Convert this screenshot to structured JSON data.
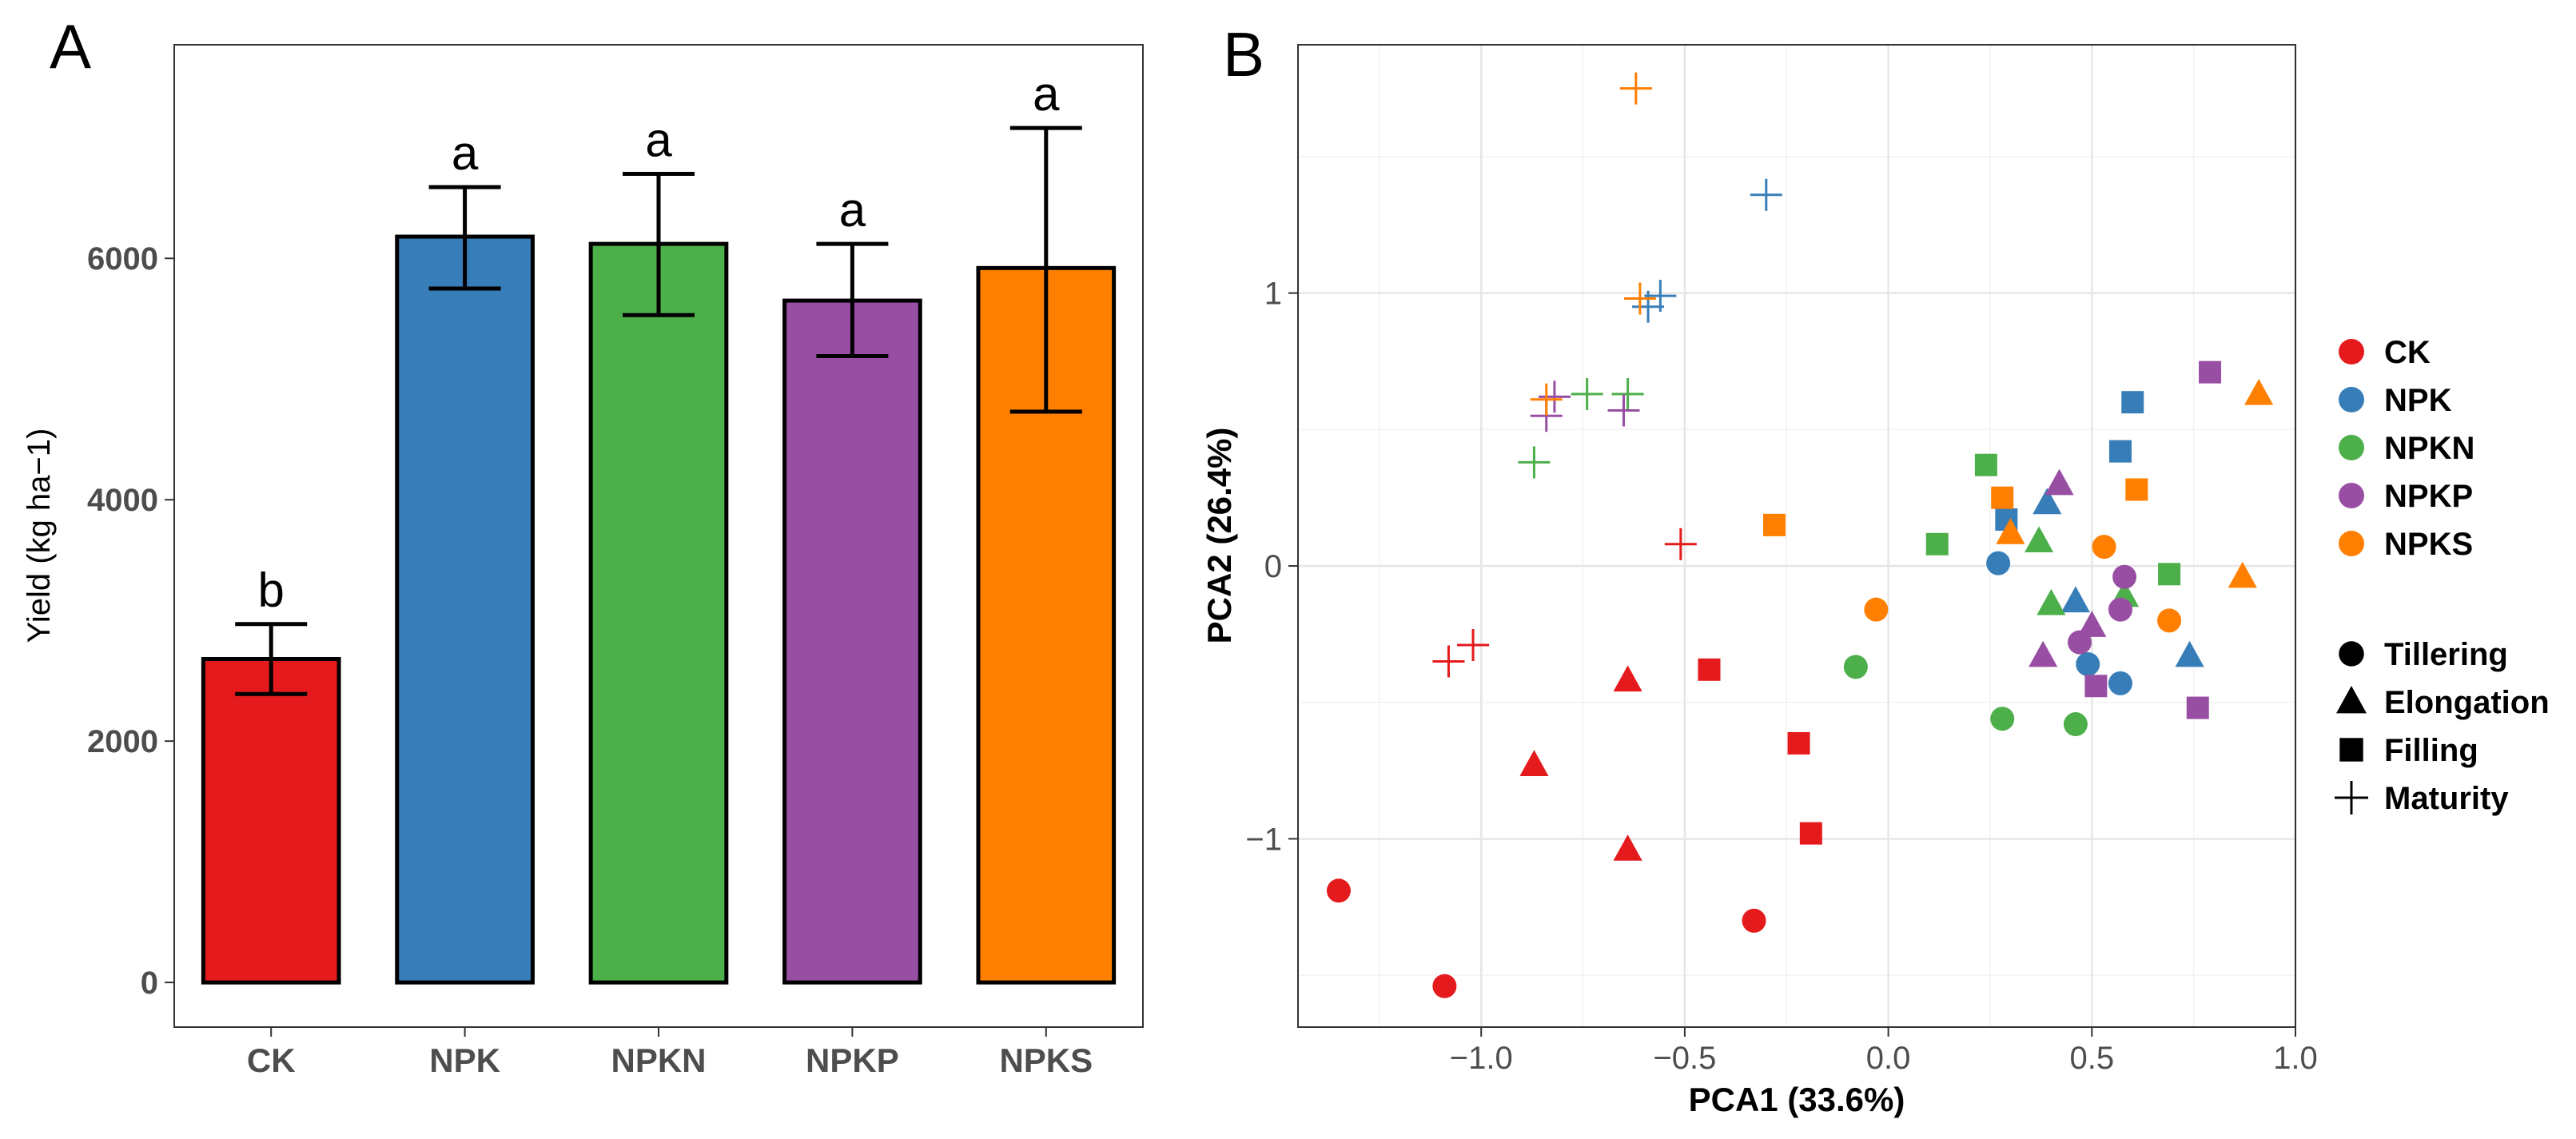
{
  "figure": {
    "panel_a_label": "A",
    "panel_b_label": "B"
  },
  "colors": {
    "CK": "#E41A1C",
    "NPK": "#377EB8",
    "NPKN": "#4DAF4A",
    "NPKP": "#984EA3",
    "NPKS": "#FF7F00"
  },
  "chart_data": [
    {
      "type": "bar",
      "panel": "A",
      "title": "",
      "xlabel": "",
      "ylabel": "Yield (kg ha−1)",
      "categories": [
        "CK",
        "NPK",
        "NPKN",
        "NPKP",
        "NPKS"
      ],
      "values": [
        2680,
        6180,
        6120,
        5650,
        5920
      ],
      "error_low": [
        2390,
        5750,
        5530,
        5190,
        4730
      ],
      "error_high": [
        2970,
        6590,
        6700,
        6120,
        7080
      ],
      "significance_letters": [
        "b",
        "a",
        "a",
        "a",
        "a"
      ],
      "ylim": [
        -370,
        7770
      ],
      "yticks": [
        0,
        2000,
        4000,
        6000
      ],
      "ytick_labels": [
        "0",
        "2000",
        "4000",
        "6000"
      ],
      "grid": false
    },
    {
      "type": "scatter",
      "panel": "B",
      "title": "",
      "xlabel": "PCA1 (33.6%)",
      "ylabel": "PCA2 (26.4%)",
      "xlim": [
        -1.45,
        1.0
      ],
      "ylim": [
        -1.69,
        1.91
      ],
      "xticks": [
        -1.0,
        -0.5,
        0.0,
        0.5,
        1.0
      ],
      "xtick_labels": [
        "−1.0",
        "−0.5",
        "0.0",
        "0.5",
        "1.0"
      ],
      "yticks": [
        -1,
        0,
        1
      ],
      "ytick_labels": [
        "−1",
        "0",
        "1"
      ],
      "grid": true,
      "legend_position": "right",
      "treatment_legend": [
        "CK",
        "NPK",
        "NPKN",
        "NPKP",
        "NPKS"
      ],
      "stage_legend": [
        {
          "label": "Tillering",
          "shape": "circle"
        },
        {
          "label": "Elongation",
          "shape": "triangle"
        },
        {
          "label": "Filling",
          "shape": "square"
        },
        {
          "label": "Maturity",
          "shape": "plus"
        }
      ],
      "series": [
        {
          "treatment": "CK",
          "stage": "Tillering",
          "points": [
            [
              -1.35,
              -1.19
            ],
            [
              -1.09,
              -1.54
            ],
            [
              -0.33,
              -1.3
            ]
          ]
        },
        {
          "treatment": "CK",
          "stage": "Elongation",
          "points": [
            [
              -0.87,
              -0.73
            ],
            [
              -0.64,
              -0.42
            ],
            [
              -0.64,
              -1.04
            ]
          ]
        },
        {
          "treatment": "CK",
          "stage": "Filling",
          "points": [
            [
              -0.44,
              -0.38
            ],
            [
              -0.22,
              -0.65
            ],
            [
              -0.19,
              -0.98
            ]
          ]
        },
        {
          "treatment": "CK",
          "stage": "Maturity",
          "points": [
            [
              -1.08,
              -0.35
            ],
            [
              -1.02,
              -0.29
            ],
            [
              -0.51,
              0.08
            ]
          ]
        },
        {
          "treatment": "NPK",
          "stage": "Tillering",
          "points": [
            [
              0.27,
              0.01
            ],
            [
              0.49,
              -0.36
            ],
            [
              0.57,
              -0.43
            ]
          ]
        },
        {
          "treatment": "NPK",
          "stage": "Elongation",
          "points": [
            [
              0.39,
              0.23
            ],
            [
              0.46,
              -0.13
            ],
            [
              0.74,
              -0.33
            ]
          ]
        },
        {
          "treatment": "NPK",
          "stage": "Filling",
          "points": [
            [
              0.29,
              0.17
            ],
            [
              0.57,
              0.42
            ],
            [
              0.6,
              0.6
            ]
          ]
        },
        {
          "treatment": "NPK",
          "stage": "Maturity",
          "points": [
            [
              -0.3,
              1.36
            ],
            [
              -0.56,
              0.99
            ],
            [
              -0.59,
              0.95
            ]
          ]
        },
        {
          "treatment": "NPKN",
          "stage": "Tillering",
          "points": [
            [
              -0.08,
              -0.37
            ],
            [
              0.28,
              -0.56
            ],
            [
              0.46,
              -0.58
            ]
          ]
        },
        {
          "treatment": "NPKN",
          "stage": "Elongation",
          "points": [
            [
              0.37,
              0.09
            ],
            [
              0.4,
              -0.14
            ],
            [
              0.58,
              -0.11
            ]
          ]
        },
        {
          "treatment": "NPKN",
          "stage": "Filling",
          "points": [
            [
              0.12,
              0.08
            ],
            [
              0.24,
              0.37
            ],
            [
              0.69,
              -0.03
            ]
          ]
        },
        {
          "treatment": "NPKN",
          "stage": "Maturity",
          "points": [
            [
              -0.87,
              0.38
            ],
            [
              -0.74,
              0.63
            ],
            [
              -0.64,
              0.63
            ]
          ]
        },
        {
          "treatment": "NPKP",
          "stage": "Tillering",
          "points": [
            [
              0.47,
              -0.28
            ],
            [
              0.57,
              -0.16
            ],
            [
              0.58,
              -0.04
            ]
          ]
        },
        {
          "treatment": "NPKP",
          "stage": "Elongation",
          "points": [
            [
              0.38,
              -0.33
            ],
            [
              0.42,
              0.3
            ],
            [
              0.5,
              -0.22
            ]
          ]
        },
        {
          "treatment": "NPKP",
          "stage": "Filling",
          "points": [
            [
              0.51,
              -0.44
            ],
            [
              0.76,
              -0.52
            ],
            [
              0.79,
              0.71
            ]
          ]
        },
        {
          "treatment": "NPKP",
          "stage": "Maturity",
          "points": [
            [
              -0.84,
              0.55
            ],
            [
              -0.82,
              0.62
            ],
            [
              -0.65,
              0.57
            ]
          ]
        },
        {
          "treatment": "NPKS",
          "stage": "Tillering",
          "points": [
            [
              -0.03,
              -0.16
            ],
            [
              0.53,
              0.07
            ],
            [
              0.69,
              -0.2
            ]
          ]
        },
        {
          "treatment": "NPKS",
          "stage": "Elongation",
          "points": [
            [
              0.3,
              0.12
            ],
            [
              0.87,
              -0.04
            ],
            [
              0.91,
              0.63
            ]
          ]
        },
        {
          "treatment": "NPKS",
          "stage": "Filling",
          "points": [
            [
              -0.28,
              0.15
            ],
            [
              0.28,
              0.25
            ],
            [
              0.61,
              0.28
            ]
          ]
        },
        {
          "treatment": "NPKS",
          "stage": "Maturity",
          "points": [
            [
              -0.62,
              1.75
            ],
            [
              -0.61,
              0.98
            ],
            [
              -0.84,
              0.61
            ]
          ]
        }
      ]
    }
  ]
}
